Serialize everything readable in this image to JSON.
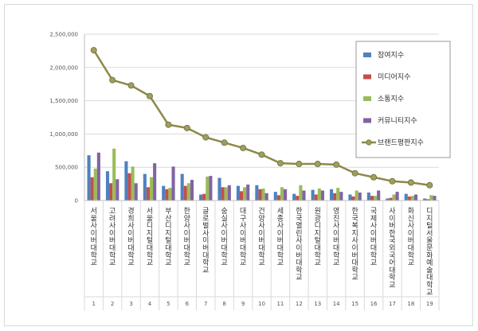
{
  "chart_data": {
    "type": "bar",
    "title": "",
    "xlabel": "",
    "ylabel": "",
    "ylim": [
      0,
      2500000
    ],
    "y_ticks": [
      "0",
      "500,000",
      "1,000,000",
      "1,500,000",
      "2,000,000",
      "2,500,000"
    ],
    "y_tick_values": [
      0,
      500000,
      1000000,
      1500000,
      2000000,
      2500000
    ],
    "grid": true,
    "legend_position": "top-right",
    "categories": [
      "서울사이버대학교",
      "고려사이버대학교",
      "경희사이버대학교",
      "서울디지털대학교",
      "부산디지털대학교",
      "한양사이버대학교",
      "글로벌사이버대학교",
      "숭실사이버대학교",
      "대구사이버대학교",
      "건양사이버대학교",
      "세종사이버대학교",
      "한국열린사이버대학교",
      "원광디지털대학교",
      "영진사이버대학교",
      "한국복지사이버대학교",
      "국제사이버대학교",
      "사이버한국외국어대학교",
      "화신사이버대학교",
      "디지털서울문화예술대학교"
    ],
    "x_numbers": [
      "1",
      "2",
      "3",
      "4",
      "5",
      "6",
      "7",
      "8",
      "9",
      "10",
      "11",
      "12",
      "13",
      "14",
      "15",
      "16",
      "17",
      "18",
      "19"
    ],
    "series": [
      {
        "name": "참여지수",
        "kind": "bar",
        "color": "#4f81bd",
        "values": [
          680000,
          440000,
          590000,
          400000,
          220000,
          400000,
          90000,
          340000,
          220000,
          230000,
          130000,
          100000,
          160000,
          170000,
          90000,
          120000,
          30000,
          100000,
          30000
        ]
      },
      {
        "name": "미디어지수",
        "kind": "bar",
        "color": "#c0504d",
        "values": [
          350000,
          260000,
          410000,
          200000,
          170000,
          220000,
          100000,
          200000,
          140000,
          170000,
          80000,
          70000,
          90000,
          110000,
          60000,
          70000,
          40000,
          60000,
          20000
        ]
      },
      {
        "name": "소통지수",
        "kind": "bar",
        "color": "#9bbb59",
        "values": [
          480000,
          780000,
          510000,
          350000,
          190000,
          260000,
          360000,
          200000,
          200000,
          180000,
          200000,
          230000,
          180000,
          190000,
          150000,
          70000,
          90000,
          70000,
          80000
        ]
      },
      {
        "name": "커뮤니티지수",
        "kind": "bar",
        "color": "#8064a2",
        "values": [
          720000,
          320000,
          260000,
          560000,
          510000,
          310000,
          370000,
          230000,
          240000,
          110000,
          170000,
          150000,
          150000,
          130000,
          120000,
          150000,
          130000,
          90000,
          70000
        ]
      },
      {
        "name": "브랜드평판지수",
        "kind": "line",
        "color": "#8b8a4a",
        "values": [
          2260000,
          1810000,
          1730000,
          1570000,
          1140000,
          1090000,
          950000,
          870000,
          790000,
          690000,
          560000,
          550000,
          550000,
          540000,
          410000,
          350000,
          290000,
          270000,
          230000
        ]
      }
    ]
  }
}
